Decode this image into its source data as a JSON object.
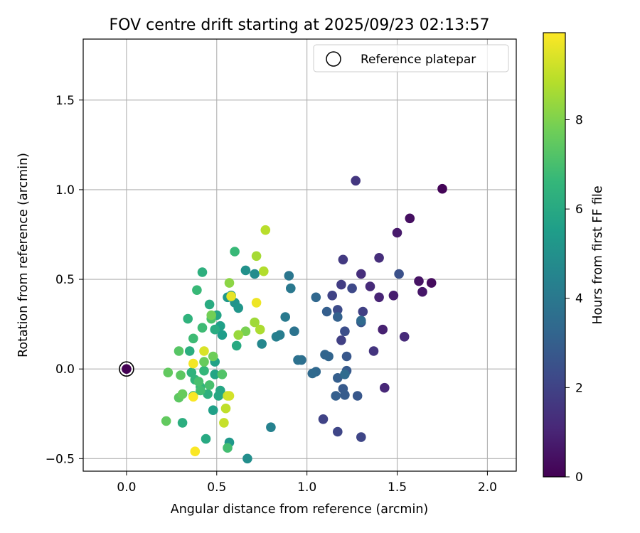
{
  "chart_data": {
    "type": "scatter",
    "title": "FOV centre drift starting at 2025/09/23 02:13:57",
    "xlabel": "Angular distance from reference (arcmin)",
    "ylabel": "Rotation from reference (arcmin)",
    "xlim": [
      -0.24,
      2.16
    ],
    "ylim": [
      -0.57,
      1.84
    ],
    "xticks": [
      0.0,
      0.5,
      1.0,
      1.5,
      2.0
    ],
    "xtick_labels": [
      "0.0",
      "0.5",
      "1.0",
      "1.5",
      "2.0"
    ],
    "yticks": [
      -0.5,
      0.0,
      0.5,
      1.0,
      1.5
    ],
    "ytick_labels": [
      "−0.5",
      "0.0",
      "0.5",
      "1.0",
      "1.5"
    ],
    "grid": true,
    "legend": {
      "location": "top-right",
      "label": "Reference platepar"
    },
    "reference_point": {
      "x": 0.0,
      "y": 0.0
    },
    "colorbar": {
      "label": "Hours from first FF file",
      "min": 0,
      "max": 9.95,
      "ticks": [
        0,
        2,
        4,
        6,
        8
      ],
      "tick_labels": [
        "0",
        "2",
        "4",
        "6",
        "8"
      ],
      "colormap": [
        "#440154",
        "#482878",
        "#3e4989",
        "#31688e",
        "#26828e",
        "#1f9e89",
        "#35b779",
        "#6ece58",
        "#b5de2b",
        "#fde725"
      ]
    },
    "points": [
      {
        "x": 0.0,
        "y": 0.0,
        "t": 0.0
      },
      {
        "x": 1.75,
        "y": 1.005,
        "t": 0.1
      },
      {
        "x": 1.69,
        "y": 0.48,
        "t": 0.3
      },
      {
        "x": 1.57,
        "y": 0.84,
        "t": 0.4
      },
      {
        "x": 1.62,
        "y": 0.49,
        "t": 0.5
      },
      {
        "x": 1.64,
        "y": 0.43,
        "t": 0.6
      },
      {
        "x": 1.5,
        "y": 0.76,
        "t": 0.7
      },
      {
        "x": 1.48,
        "y": 0.41,
        "t": 0.8
      },
      {
        "x": 1.42,
        "y": 0.22,
        "t": 0.9
      },
      {
        "x": 1.4,
        "y": 0.4,
        "t": 1.0
      },
      {
        "x": 1.43,
        "y": -0.105,
        "t": 1.1
      },
      {
        "x": 1.35,
        "y": 0.46,
        "t": 1.2
      },
      {
        "x": 1.3,
        "y": 0.53,
        "t": 1.3
      },
      {
        "x": 1.37,
        "y": 0.1,
        "t": 1.5
      },
      {
        "x": 1.27,
        "y": 1.05,
        "t": 1.6
      },
      {
        "x": 1.2,
        "y": 0.61,
        "t": 1.7
      },
      {
        "x": 1.19,
        "y": 0.47,
        "t": 1.8
      },
      {
        "x": 1.19,
        "y": 0.16,
        "t": 1.9
      },
      {
        "x": 1.31,
        "y": 0.32,
        "t": 1.9
      },
      {
        "x": 1.14,
        "y": 0.41,
        "t": 2.0
      },
      {
        "x": 1.09,
        "y": -0.28,
        "t": 2.0
      },
      {
        "x": 1.17,
        "y": -0.35,
        "t": 2.1
      },
      {
        "x": 1.3,
        "y": -0.38,
        "t": 2.1
      },
      {
        "x": 1.25,
        "y": 0.45,
        "t": 2.2
      },
      {
        "x": 1.17,
        "y": 0.33,
        "t": 2.3
      },
      {
        "x": 1.21,
        "y": 0.21,
        "t": 2.4
      },
      {
        "x": 1.4,
        "y": 0.62,
        "t": 1.3
      },
      {
        "x": 1.54,
        "y": 0.18,
        "t": 1.2
      },
      {
        "x": 1.3,
        "y": 0.26,
        "t": 2.6
      },
      {
        "x": 1.28,
        "y": -0.15,
        "t": 2.7
      },
      {
        "x": 1.22,
        "y": 0.07,
        "t": 2.7
      },
      {
        "x": 1.22,
        "y": -0.01,
        "t": 2.8
      },
      {
        "x": 1.2,
        "y": -0.11,
        "t": 2.8
      },
      {
        "x": 1.21,
        "y": -0.145,
        "t": 2.9
      },
      {
        "x": 1.16,
        "y": -0.15,
        "t": 3.0
      },
      {
        "x": 1.17,
        "y": -0.05,
        "t": 3.0
      },
      {
        "x": 1.11,
        "y": 0.32,
        "t": 3.0
      },
      {
        "x": 1.17,
        "y": 0.29,
        "t": 3.1
      },
      {
        "x": 1.1,
        "y": 0.08,
        "t": 3.2
      },
      {
        "x": 1.12,
        "y": 0.07,
        "t": 3.2
      },
      {
        "x": 1.05,
        "y": 0.4,
        "t": 3.3
      },
      {
        "x": 1.05,
        "y": -0.015,
        "t": 3.3
      },
      {
        "x": 1.03,
        "y": -0.025,
        "t": 3.4
      },
      {
        "x": 1.3,
        "y": 0.27,
        "t": 3.4
      },
      {
        "x": 1.21,
        "y": -0.03,
        "t": 3.5
      },
      {
        "x": 1.51,
        "y": 0.53,
        "t": 2.5
      },
      {
        "x": 0.97,
        "y": 0.05,
        "t": 3.6
      },
      {
        "x": 0.95,
        "y": 0.05,
        "t": 3.7
      },
      {
        "x": 0.93,
        "y": 0.21,
        "t": 3.8
      },
      {
        "x": 0.9,
        "y": 0.52,
        "t": 3.9
      },
      {
        "x": 0.91,
        "y": 0.45,
        "t": 4.0
      },
      {
        "x": 0.88,
        "y": 0.29,
        "t": 4.1
      },
      {
        "x": 0.85,
        "y": 0.19,
        "t": 4.2
      },
      {
        "x": 0.83,
        "y": 0.18,
        "t": 4.3
      },
      {
        "x": 0.8,
        "y": -0.325,
        "t": 4.4
      },
      {
        "x": 0.75,
        "y": 0.14,
        "t": 4.6
      },
      {
        "x": 0.71,
        "y": 0.53,
        "t": 4.8
      },
      {
        "x": 0.67,
        "y": -0.5,
        "t": 4.9
      },
      {
        "x": 0.66,
        "y": 0.55,
        "t": 5.0
      },
      {
        "x": 0.6,
        "y": 0.37,
        "t": 5.1
      },
      {
        "x": 0.62,
        "y": 0.34,
        "t": 5.2
      },
      {
        "x": 0.56,
        "y": 0.4,
        "t": 5.3
      },
      {
        "x": 0.57,
        "y": -0.41,
        "t": 5.3
      },
      {
        "x": 0.58,
        "y": 0.41,
        "t": 5.4
      },
      {
        "x": 0.53,
        "y": 0.19,
        "t": 5.5
      },
      {
        "x": 0.52,
        "y": 0.24,
        "t": 5.6
      },
      {
        "x": 0.48,
        "y": -0.23,
        "t": 5.6
      },
      {
        "x": 0.49,
        "y": 0.04,
        "t": 5.7
      },
      {
        "x": 0.49,
        "y": -0.03,
        "t": 5.8
      },
      {
        "x": 0.5,
        "y": 0.3,
        "t": 5.8
      },
      {
        "x": 0.52,
        "y": -0.12,
        "t": 5.9
      },
      {
        "x": 0.51,
        "y": -0.15,
        "t": 5.9
      },
      {
        "x": 0.61,
        "y": 0.13,
        "t": 6.0
      },
      {
        "x": 0.44,
        "y": -0.39,
        "t": 6.0
      },
      {
        "x": 0.46,
        "y": 0.36,
        "t": 6.1
      },
      {
        "x": 0.49,
        "y": 0.22,
        "t": 6.1
      },
      {
        "x": 0.35,
        "y": 0.1,
        "t": 6.2
      },
      {
        "x": 0.31,
        "y": -0.3,
        "t": 6.2
      },
      {
        "x": 0.42,
        "y": 0.54,
        "t": 6.3
      },
      {
        "x": 0.45,
        "y": -0.14,
        "t": 6.3
      },
      {
        "x": 0.34,
        "y": 0.28,
        "t": 6.4
      },
      {
        "x": 0.36,
        "y": -0.02,
        "t": 6.4
      },
      {
        "x": 0.38,
        "y": -0.06,
        "t": 6.5
      },
      {
        "x": 0.41,
        "y": -0.1,
        "t": 6.5
      },
      {
        "x": 0.37,
        "y": -0.15,
        "t": 6.6
      },
      {
        "x": 0.43,
        "y": -0.01,
        "t": 6.6
      },
      {
        "x": 0.39,
        "y": 0.44,
        "t": 6.7
      },
      {
        "x": 0.6,
        "y": 0.655,
        "t": 6.7
      },
      {
        "x": 0.42,
        "y": 0.23,
        "t": 6.8
      },
      {
        "x": 0.37,
        "y": 0.17,
        "t": 6.8
      },
      {
        "x": 0.56,
        "y": -0.44,
        "t": 6.9
      },
      {
        "x": 0.41,
        "y": -0.12,
        "t": 6.9
      },
      {
        "x": 0.4,
        "y": -0.07,
        "t": 7.0
      },
      {
        "x": 0.46,
        "y": -0.09,
        "t": 7.0
      },
      {
        "x": 0.47,
        "y": 0.28,
        "t": 7.1
      },
      {
        "x": 0.53,
        "y": -0.03,
        "t": 7.2
      },
      {
        "x": 0.29,
        "y": 0.1,
        "t": 7.3
      },
      {
        "x": 0.29,
        "y": -0.16,
        "t": 7.4
      },
      {
        "x": 0.3,
        "y": -0.035,
        "t": 7.4
      },
      {
        "x": 0.23,
        "y": -0.02,
        "t": 7.5
      },
      {
        "x": 0.22,
        "y": -0.29,
        "t": 7.5
      },
      {
        "x": 0.31,
        "y": -0.14,
        "t": 7.6
      },
      {
        "x": 0.43,
        "y": 0.04,
        "t": 7.6
      },
      {
        "x": 0.48,
        "y": 0.07,
        "t": 7.7
      },
      {
        "x": 0.47,
        "y": 0.3,
        "t": 7.8
      },
      {
        "x": 0.66,
        "y": 0.21,
        "t": 7.9
      },
      {
        "x": 0.57,
        "y": 0.48,
        "t": 8.2
      },
      {
        "x": 0.62,
        "y": 0.19,
        "t": 8.4
      },
      {
        "x": 0.71,
        "y": 0.26,
        "t": 8.5
      },
      {
        "x": 0.72,
        "y": 0.63,
        "t": 8.6
      },
      {
        "x": 0.74,
        "y": 0.22,
        "t": 8.7
      },
      {
        "x": 0.76,
        "y": 0.545,
        "t": 8.8
      },
      {
        "x": 0.77,
        "y": 0.775,
        "t": 8.9
      },
      {
        "x": 0.55,
        "y": -0.22,
        "t": 9.0
      },
      {
        "x": 0.54,
        "y": -0.3,
        "t": 9.1
      },
      {
        "x": 0.56,
        "y": -0.15,
        "t": 9.2
      },
      {
        "x": 0.57,
        "y": -0.15,
        "t": 9.3
      },
      {
        "x": 0.43,
        "y": 0.1,
        "t": 9.4
      },
      {
        "x": 0.58,
        "y": 0.405,
        "t": 9.6
      },
      {
        "x": 0.72,
        "y": 0.37,
        "t": 9.7
      },
      {
        "x": 0.37,
        "y": 0.03,
        "t": 9.8
      },
      {
        "x": 0.37,
        "y": -0.155,
        "t": 9.9
      },
      {
        "x": 0.38,
        "y": -0.46,
        "t": 9.9
      }
    ]
  }
}
